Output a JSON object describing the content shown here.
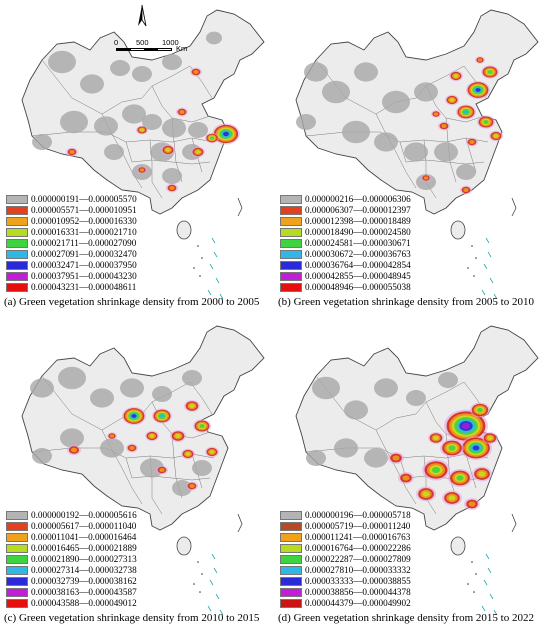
{
  "scale_bar": {
    "ticks": [
      "0",
      "500",
      "1000"
    ],
    "unit": "Km"
  },
  "panels": [
    {
      "id": "a",
      "caption": "(a) Green vegetation shrinkage density from 2000 to 2005",
      "legend": [
        "0.000000191—0.000005570",
        "0.000005571—0.000010951",
        "0.000010952—0.000016330",
        "0.000016331—0.000021710",
        "0.000021711—0.000027090",
        "0.000027091—0.000032470",
        "0.000032471—0.000037950",
        "0.000037951—0.000043230",
        "0.000043231—0.000048611"
      ]
    },
    {
      "id": "b",
      "caption": "(b) Green vegetation shrinkage density from 2005 to 2010",
      "legend": [
        "0.000000216—0.000006306",
        "0.000006307—0.000012397",
        "0.000012398—0.000018489",
        "0.000018490—0.000024580",
        "0.000024581—0.000030671",
        "0.000030672—0.000036763",
        "0.000036764—0.000042854",
        "0.000042855—0.000048945",
        "0.000048946—0.000055038"
      ]
    },
    {
      "id": "c",
      "caption": "(c) Green vegetation shrinkage density from 2010 to 2015",
      "legend": [
        "0.000000192—0.000005616",
        "0.000005617—0.000011040",
        "0.000011041—0.000016464",
        "0.000016465—0.000021889",
        "0.000021890—0.000027313",
        "0.000027314—0.000032738",
        "0.000032739—0.000038162",
        "0.000038163—0.000043587",
        "0.000043588—0.000049012"
      ]
    },
    {
      "id": "d",
      "caption": "(d) Green vegetation shrinkage density from 2015 to 2022",
      "legend": [
        "0.000000196—0.000005718",
        "0.000005719—0.000011240",
        "0.000011241—0.000016763",
        "0.000016764—0.000022286",
        "0.000022287—0.000027809",
        "0.000027810—0.000033332",
        "0.000033333—0.000038855",
        "0.000038856—0.000044378",
        "0.000044379—0.000049902"
      ]
    }
  ],
  "legend_colors": [
    "#b4b4b4",
    "#e2401f",
    "#eea21e",
    "#b6db23",
    "#3fd33f",
    "#2fb8e6",
    "#2a2ad8",
    "#c21ed8",
    "#e60f0f"
  ],
  "legend_colors_d": [
    "#b4b4b4",
    "#b54a26",
    "#eea21e",
    "#b6db23",
    "#3fd33f",
    "#2fb8e6",
    "#2a2ad8",
    "#c21ed8",
    "#c81414"
  ]
}
